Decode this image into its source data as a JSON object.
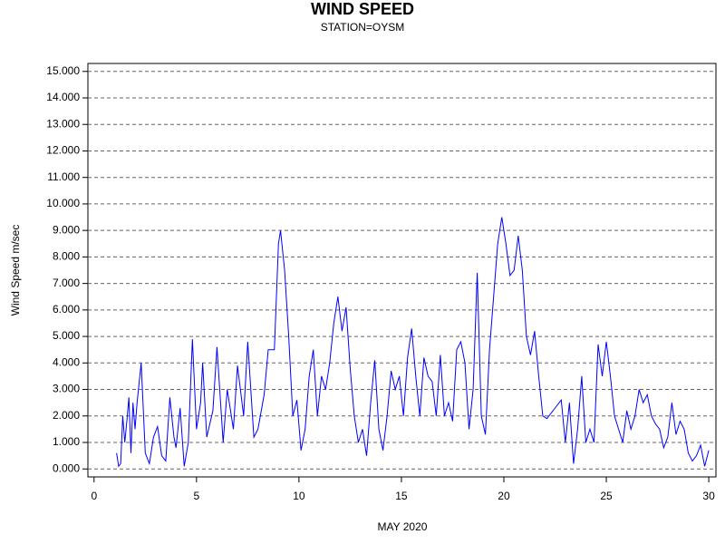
{
  "chart_data": {
    "type": "line",
    "title": "WIND SPEED",
    "subtitle": "STATION=OYSM",
    "x_label": "MAY 2020",
    "y_label": "Wind Speed m/sec",
    "x": [
      1.1,
      1.2,
      1.3,
      1.4,
      1.5,
      1.6,
      1.7,
      1.8,
      1.9,
      2.0,
      2.1,
      2.3,
      2.5,
      2.7,
      2.9,
      3.1,
      3.3,
      3.5,
      3.7,
      3.9,
      4.0,
      4.2,
      4.4,
      4.6,
      4.8,
      5.0,
      5.2,
      5.3,
      5.5,
      5.8,
      6.0,
      6.3,
      6.5,
      6.8,
      7.0,
      7.3,
      7.5,
      7.8,
      8.0,
      8.3,
      8.5,
      8.8,
      9.0,
      9.1,
      9.3,
      9.5,
      9.7,
      9.9,
      10.1,
      10.3,
      10.5,
      10.7,
      10.9,
      11.1,
      11.3,
      11.5,
      11.7,
      11.9,
      12.1,
      12.3,
      12.5,
      12.7,
      12.9,
      13.1,
      13.3,
      13.5,
      13.7,
      13.9,
      14.1,
      14.3,
      14.5,
      14.7,
      14.9,
      15.1,
      15.3,
      15.5,
      15.7,
      15.9,
      16.1,
      16.3,
      16.5,
      16.7,
      16.9,
      17.1,
      17.3,
      17.5,
      17.7,
      17.9,
      18.1,
      18.3,
      18.5,
      18.7,
      18.9,
      19.1,
      19.3,
      19.5,
      19.7,
      19.9,
      20.1,
      20.3,
      20.5,
      20.7,
      20.9,
      21.1,
      21.3,
      21.5,
      21.7,
      21.9,
      22.1,
      22.5,
      22.8,
      23.0,
      23.2,
      23.4,
      23.6,
      23.8,
      24.0,
      24.2,
      24.4,
      24.6,
      24.8,
      25.0,
      25.2,
      25.4,
      25.6,
      25.8,
      26.0,
      26.2,
      26.4,
      26.6,
      26.8,
      27.0,
      27.2,
      27.4,
      27.6,
      27.8,
      28.0,
      28.2,
      28.4,
      28.6,
      28.8,
      29.0,
      29.2,
      29.4,
      29.6,
      29.8,
      30.0
    ],
    "series": [
      {
        "name": "Wind Speed",
        "color": "#0000ff",
        "values": [
          0.6,
          0.1,
          0.2,
          2.0,
          1.0,
          1.8,
          2.7,
          0.6,
          2.5,
          1.5,
          2.5,
          4.0,
          0.6,
          0.2,
          1.2,
          1.6,
          0.5,
          0.3,
          2.7,
          1.2,
          0.8,
          2.3,
          0.1,
          1.0,
          4.9,
          1.5,
          2.5,
          4.0,
          1.2,
          2.2,
          4.6,
          1.0,
          3.0,
          1.5,
          3.9,
          2.0,
          4.8,
          1.2,
          1.5,
          2.8,
          4.5,
          4.5,
          8.5,
          9.0,
          7.5,
          5.0,
          2.0,
          2.6,
          0.7,
          1.5,
          3.5,
          4.5,
          2.0,
          3.5,
          3.0,
          4.0,
          5.5,
          6.5,
          5.2,
          6.1,
          3.8,
          2.0,
          1.0,
          1.5,
          0.5,
          2.5,
          4.1,
          1.5,
          0.7,
          2.0,
          3.7,
          3.0,
          3.5,
          2.0,
          4.2,
          5.3,
          3.5,
          2.0,
          4.2,
          3.5,
          3.3,
          2.0,
          4.3,
          2.0,
          2.5,
          1.8,
          4.5,
          4.8,
          4.0,
          1.5,
          3.0,
          7.4,
          2.0,
          1.3,
          4.5,
          6.5,
          8.5,
          9.5,
          8.5,
          7.3,
          7.5,
          8.8,
          7.5,
          5.0,
          4.3,
          5.2,
          3.5,
          2.0,
          1.9,
          2.3,
          2.6,
          1.0,
          2.5,
          0.2,
          1.5,
          3.5,
          1.0,
          1.5,
          1.0,
          4.7,
          3.5,
          4.8,
          3.5,
          2.0,
          1.5,
          1.0,
          2.2,
          1.5,
          2.0,
          3.0,
          2.5,
          2.8,
          2.0,
          1.7,
          1.5,
          0.8,
          1.2,
          2.5,
          1.3,
          1.8,
          1.5,
          0.6,
          0.3,
          0.5,
          0.9,
          0.1,
          0.7
        ]
      }
    ],
    "xlim": [
      -0.3,
      30.35
    ],
    "xticks": [
      0,
      5,
      10,
      15,
      20,
      25,
      30
    ],
    "ylim": [
      -0.3,
      15.3
    ],
    "yticks": [
      {
        "value": 0,
        "label": "0.000"
      },
      {
        "value": 1,
        "label": "1.000"
      },
      {
        "value": 2,
        "label": "2.000"
      },
      {
        "value": 3,
        "label": "3.000"
      },
      {
        "value": 4,
        "label": "4.000"
      },
      {
        "value": 5,
        "label": "5.000"
      },
      {
        "value": 6,
        "label": "6.000"
      },
      {
        "value": 7,
        "label": "7.000"
      },
      {
        "value": 8,
        "label": "8.000"
      },
      {
        "value": 9,
        "label": "9.000"
      },
      {
        "value": 10,
        "label": "10.000"
      },
      {
        "value": 11,
        "label": "11.000"
      },
      {
        "value": 12,
        "label": "12.000"
      },
      {
        "value": 13,
        "label": "13.000"
      },
      {
        "value": 14,
        "label": "14.000"
      },
      {
        "value": 15,
        "label": "15.000"
      }
    ],
    "grid": true
  }
}
